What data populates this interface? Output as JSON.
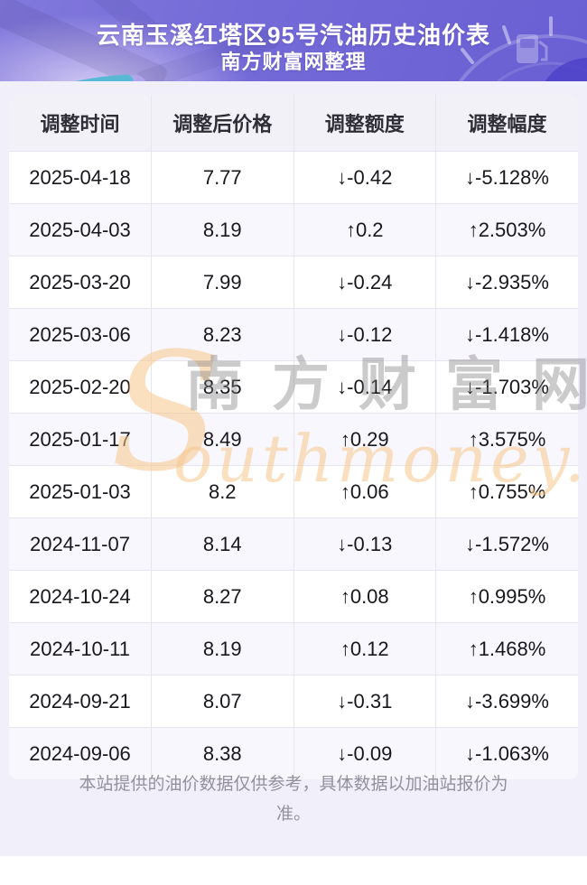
{
  "header": {
    "title": "云南玉溪红塔区95号汽油历史油价表",
    "subtitle": "南方财富网整理"
  },
  "table": {
    "columns": [
      "调整时间",
      "调整后价格",
      "调整额度",
      "调整幅度"
    ],
    "rows": [
      {
        "date": "2025-04-18",
        "price": "7.77",
        "change": "↓-0.42",
        "percent": "↓-5.128%",
        "direction": "down"
      },
      {
        "date": "2025-04-03",
        "price": "8.19",
        "change": "↑0.2",
        "percent": "↑2.503%",
        "direction": "up"
      },
      {
        "date": "2025-03-20",
        "price": "7.99",
        "change": "↓-0.24",
        "percent": "↓-2.935%",
        "direction": "down"
      },
      {
        "date": "2025-03-06",
        "price": "8.23",
        "change": "↓-0.12",
        "percent": "↓-1.418%",
        "direction": "down"
      },
      {
        "date": "2025-02-20",
        "price": "8.35",
        "change": "↓-0.14",
        "percent": "↓-1.703%",
        "direction": "down"
      },
      {
        "date": "2025-01-17",
        "price": "8.49",
        "change": "↑0.29",
        "percent": "↑3.575%",
        "direction": "up"
      },
      {
        "date": "2025-01-03",
        "price": "8.2",
        "change": "↑0.06",
        "percent": "↑0.755%",
        "direction": "up"
      },
      {
        "date": "2024-11-07",
        "price": "8.14",
        "change": "↓-0.13",
        "percent": "↓-1.572%",
        "direction": "down"
      },
      {
        "date": "2024-10-24",
        "price": "8.27",
        "change": "↑0.08",
        "percent": "↑0.995%",
        "direction": "up"
      },
      {
        "date": "2024-10-11",
        "price": "8.19",
        "change": "↑0.12",
        "percent": "↑1.468%",
        "direction": "up"
      },
      {
        "date": "2024-09-21",
        "price": "8.07",
        "change": "↓-0.31",
        "percent": "↓-3.699%",
        "direction": "down"
      },
      {
        "date": "2024-09-06",
        "price": "8.38",
        "change": "↓-0.09",
        "percent": "↓-1.063%",
        "direction": "down"
      }
    ]
  },
  "watermark": {
    "s": "S",
    "cn": "南方财富网",
    "en": "outhmoney.com"
  },
  "footer": {
    "note": "本站提供的油价数据仅供参考，具体数据以加油站报价为准。"
  },
  "colors": {
    "up": "#fa1c1c",
    "down": "#0d9b0d",
    "banner_purple": "#7369d7",
    "page_lavender": "#f0effa",
    "header_row_bg": "#f2f1f7",
    "alt_row_bg": "#f8f7fd",
    "watermark_tan": "#f6c78a"
  }
}
